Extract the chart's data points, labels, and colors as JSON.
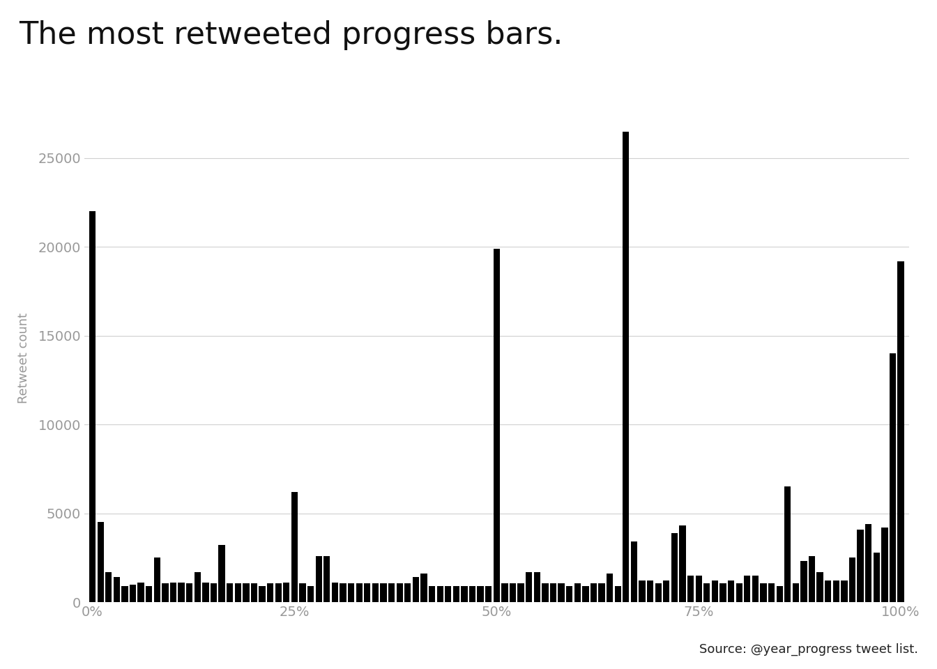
{
  "title": "The most retweeted progress bars.",
  "ylabel": "Retweet count",
  "xlabel_ticks": [
    "0%",
    "25%",
    "50%",
    "75%",
    "100%"
  ],
  "xlabel_tick_positions": [
    0,
    25,
    50,
    75,
    100
  ],
  "source_text": "Source: @year_progress tweet list.",
  "bar_color": "#000000",
  "background_color": "#ffffff",
  "grid_color": "#d0d0d0",
  "tick_color": "#999999",
  "ylabel_color": "#999999",
  "title_color": "#111111",
  "source_color": "#222222",
  "ylim": [
    0,
    27500
  ],
  "yticks": [
    0,
    5000,
    10000,
    15000,
    20000,
    25000
  ],
  "title_fontsize": 32,
  "tick_fontsize": 14,
  "ylabel_fontsize": 13,
  "values": [
    22000,
    4500,
    1700,
    1400,
    900,
    1000,
    1100,
    900,
    2500,
    1050,
    1100,
    1100,
    1050,
    1700,
    1100,
    1050,
    3200,
    1050,
    1050,
    1050,
    1050,
    900,
    1050,
    1050,
    1100,
    6200,
    1050,
    900,
    2600,
    2600,
    1100,
    1050,
    1050,
    1050,
    1050,
    1050,
    1050,
    1050,
    1050,
    1050,
    1400,
    1600,
    900,
    900,
    900,
    900,
    900,
    900,
    900,
    900,
    19900,
    1050,
    1050,
    1050,
    1700,
    1700,
    1050,
    1050,
    1050,
    900,
    1050,
    900,
    1050,
    1050,
    1600,
    900,
    26500,
    3400,
    1200,
    1200,
    1050,
    1200,
    3900,
    4300,
    1500,
    1500,
    1050,
    1200,
    1050,
    1200,
    1050,
    1500,
    1500,
    1050,
    1050,
    900,
    6500,
    1050,
    2300,
    2600,
    1700,
    1200,
    1200,
    1200,
    2500,
    4100,
    4400,
    2800,
    4200,
    14000,
    19200
  ]
}
